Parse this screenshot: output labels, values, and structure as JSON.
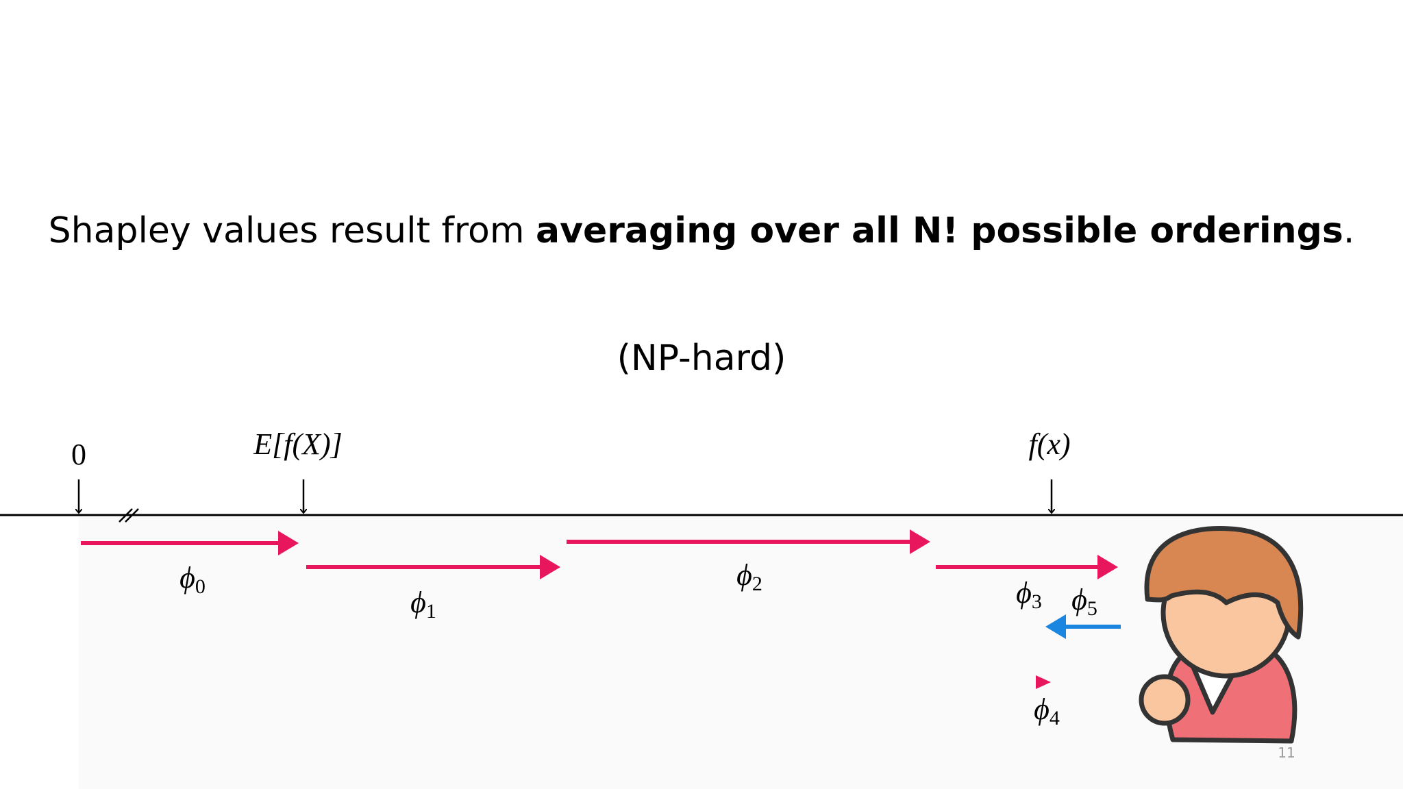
{
  "title": {
    "plain": "Shapley values result from ",
    "bold": "averaging over all N! possible orderings",
    "end": "."
  },
  "note": "(NP-hard)",
  "markers": [
    "0",
    "E[f(X)]",
    "f(x)"
  ],
  "contributions": [
    {
      "symbol": "ϕ",
      "sub": "0"
    },
    {
      "symbol": "ϕ",
      "sub": "1"
    },
    {
      "symbol": "ϕ",
      "sub": "2"
    },
    {
      "symbol": "ϕ",
      "sub": "3"
    },
    {
      "symbol": "ϕ",
      "sub": "4"
    },
    {
      "symbol": "ϕ",
      "sub": "5"
    }
  ],
  "page_number": "11"
}
